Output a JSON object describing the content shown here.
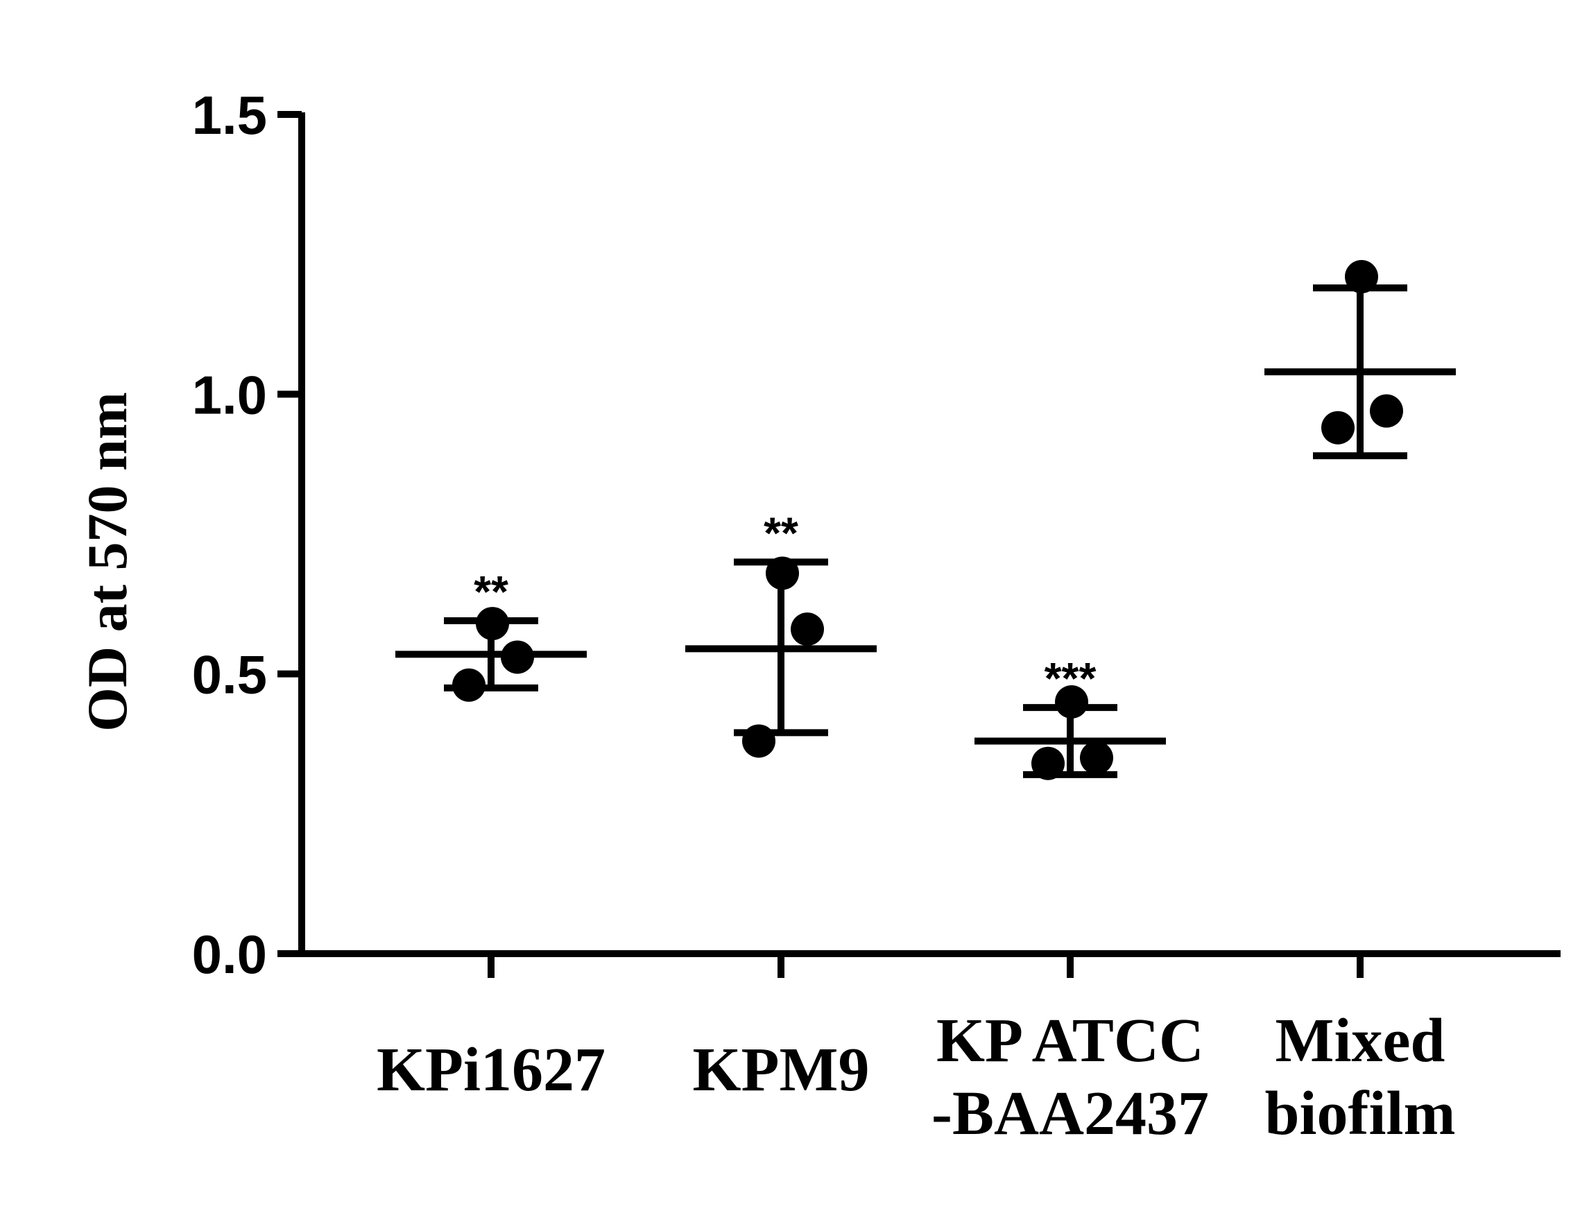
{
  "chart_data": {
    "type": "scatter",
    "ylabel": "OD at 570 nm",
    "xlabel": "",
    "ylim": [
      0,
      1.5
    ],
    "yticks": [
      "0.0",
      "0.5",
      "1.0",
      "1.5"
    ],
    "categories": [
      {
        "lines": [
          "KPi1627"
        ],
        "points": [
          0.48,
          0.53,
          0.59
        ],
        "mean": 0.535,
        "sd_low": 0.475,
        "sd_high": 0.595,
        "significance": "**"
      },
      {
        "lines": [
          "KPM9"
        ],
        "points": [
          0.38,
          0.58,
          0.68
        ],
        "mean": 0.545,
        "sd_low": 0.395,
        "sd_high": 0.7,
        "significance": "**"
      },
      {
        "lines": [
          "KP ATCC",
          "-BAA2437"
        ],
        "points": [
          0.34,
          0.35,
          0.45
        ],
        "mean": 0.38,
        "sd_low": 0.32,
        "sd_high": 0.44,
        "significance": "***"
      },
      {
        "lines": [
          "Mixed",
          "biofilm"
        ],
        "points": [
          0.94,
          0.97,
          1.21
        ],
        "mean": 1.04,
        "sd_low": 0.89,
        "sd_high": 1.19,
        "significance": ""
      }
    ],
    "grid": false,
    "legend": "none",
    "color": "#000000"
  }
}
